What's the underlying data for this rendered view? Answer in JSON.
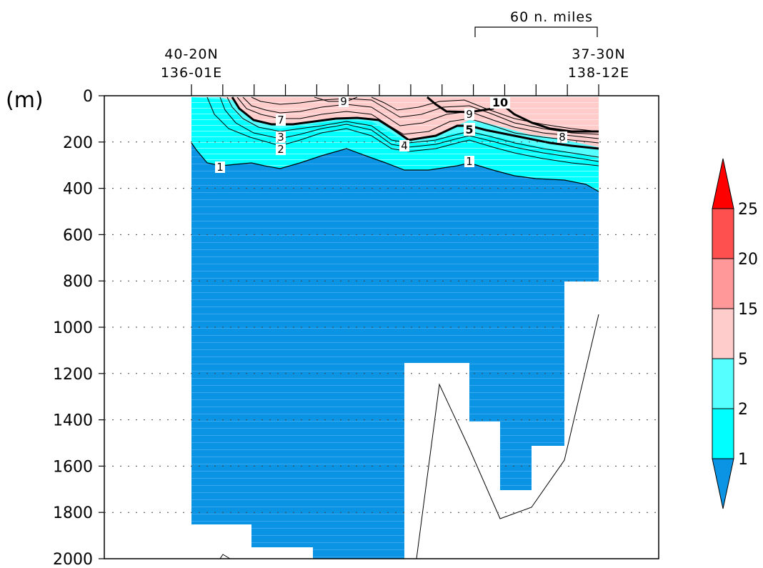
{
  "chart_data": {
    "type": "contour-section",
    "y_unit_label": "(m)",
    "y_ticks": [
      0,
      200,
      400,
      600,
      800,
      1000,
      1200,
      1400,
      1600,
      1800,
      2000
    ],
    "ylim": [
      2000,
      0
    ],
    "grid": "dotted horizontal",
    "start_location": [
      "40-20N",
      "136-01E"
    ],
    "end_location": [
      "37-30N",
      "138-12E"
    ],
    "scale_bar_label": "60 n. miles",
    "legend": {
      "placement": "right",
      "levels": [
        1,
        2,
        5,
        15,
        20,
        25
      ],
      "level_labels": [
        "1",
        "2",
        "5",
        "15",
        "20",
        "25"
      ],
      "colors": [
        "#0b93e4",
        "#00ffff",
        "#55ffff",
        "#ffcccc",
        "#ff9999",
        "#ff5050",
        "#ff0000"
      ]
    },
    "contour_labels": [
      "9",
      "10",
      "9",
      "7",
      "5",
      "3",
      "8",
      "2",
      "4",
      "1",
      "1"
    ]
  }
}
